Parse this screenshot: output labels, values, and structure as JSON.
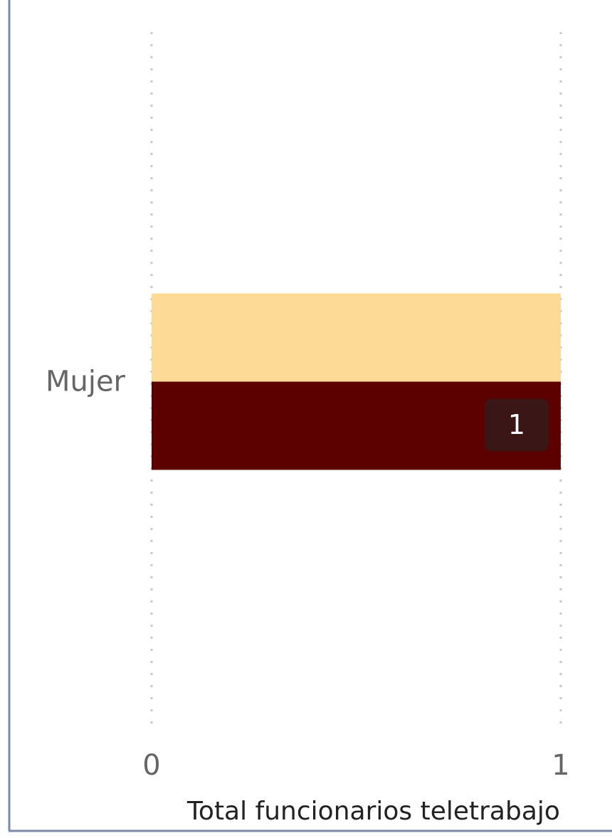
{
  "chart_data": {
    "type": "hbar",
    "categories": [
      "Mujer"
    ],
    "series": [
      {
        "color": "#fdda96",
        "values": [
          1
        ]
      },
      {
        "color": "#5c0000",
        "values": [
          1
        ],
        "data_labels": true
      }
    ],
    "xlim": [
      0,
      1
    ],
    "xticks": [
      0,
      1
    ],
    "grid": true,
    "x_label": "Total funcionarios teletrabajo"
  }
}
